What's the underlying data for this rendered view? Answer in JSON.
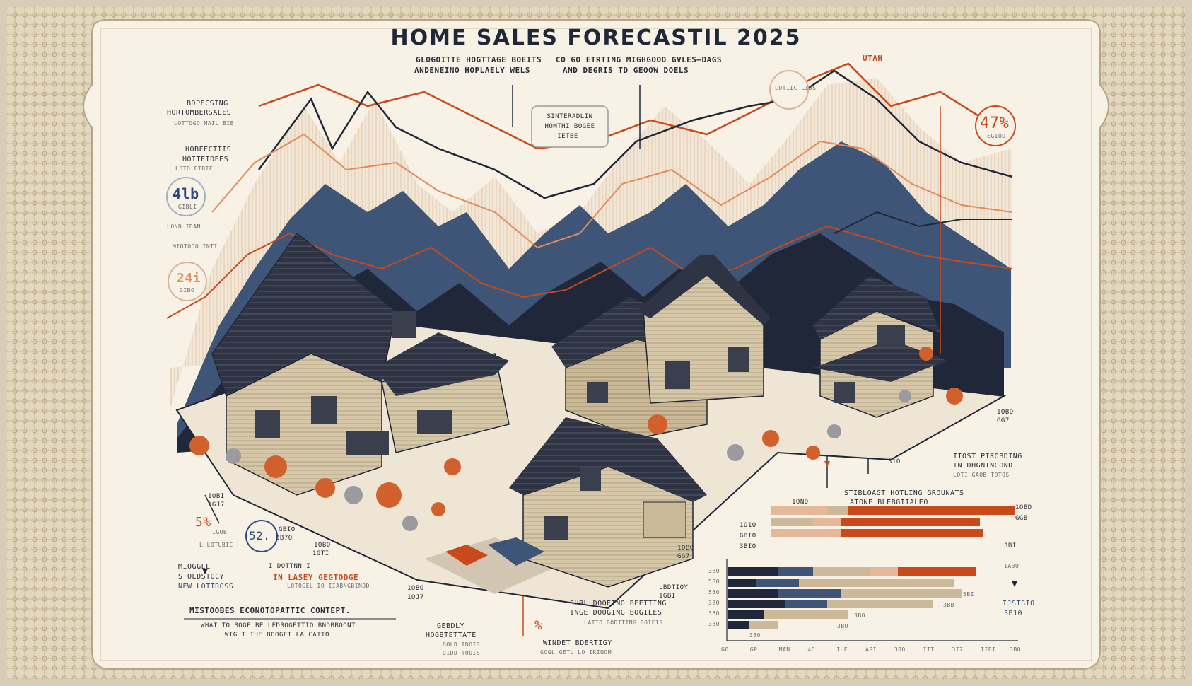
{
  "title": "HOME SALES FORECASTIL 2025",
  "colors": {
    "paper": "#f7f1e6",
    "frame": "#e3d7c0",
    "navy": "#1f2738",
    "slate": "#3f5577",
    "orange": "#c84a1c",
    "tan": "#cbb99a",
    "peach": "#e6b89a"
  },
  "labels": {
    "subtitle_left": [
      "GLOGOITTE HOGTTAGE BOEITS",
      "ANDENEINO HOPLAELY WELS"
    ],
    "subtitle_right": [
      "CO GO ETRTING MIGHGOOD GVLES—DAGS",
      "AND DEGRIS TD GEOOW DOELS"
    ],
    "utah": "UTAH",
    "box_center": [
      "SINTERADLIN",
      "HOMTHI BOGEE",
      "IETBE—"
    ],
    "left_1": [
      "BDPECSING",
      "HORTOMBERSALES",
      "LOTTOGO MAIL BIB"
    ],
    "left_2": [
      "HOBFECTTIS",
      "HOITEIDEES",
      "LOTO ETBIE"
    ],
    "pct_left_top": "4lb",
    "pct_left_top_sub": "GIBLI",
    "left_3": "LOND IDAN",
    "left_4": "MIOTOOO INTI",
    "pct_left_mid": "24i",
    "pct_left_mid_sub": "GIBO",
    "pct_right_top": "47%",
    "pct_right_top_sub": "EGIOD",
    "circle_top": "LOTIIC LIDS",
    "right_mid": [
      "1OBD",
      "GG7"
    ],
    "right_note": [
      "IIOST PIROBDING",
      "IN DHGNINGOND",
      "LOTI GAOB TOTOS"
    ],
    "center_note": [
      "STIBLOAGT HOTLING GROUNATS",
      "ATONE BLEBGIIALEO"
    ],
    "val_center_a": "1OND",
    "val_center_b": "31O",
    "bottom_left_a": [
      "1OBI",
      "1GJ7"
    ],
    "pct_bl_a": "5%",
    "pct_bl_a_sub": [
      "1GOB",
      "L LOTUBIC"
    ],
    "pct_bl_b": "52.",
    "val_bl_b": [
      "GBIO",
      "3B7O"
    ],
    "val_bl_c": [
      "1OBO",
      "1GTI"
    ],
    "bottom_left_note": [
      "MIOGGLL",
      "STOLDSTOCY",
      "NEW LOTTROSS"
    ],
    "orange_note": [
      "IN LASEY GEGTODGE",
      "LOTOGEL IO IIABNGBINDD"
    ],
    "small_note": "I DOTTNN I",
    "bottom_center_a": [
      "1OBO",
      "1OJ7"
    ],
    "bottom_center_b": [
      "GEBDLY",
      "HOGBTETTATE"
    ],
    "bottom_center_b_sub": [
      "GOLD IDOIS",
      "DIDD TOOIS"
    ],
    "pct_bottom": "%",
    "bottom_center_c": [
      "WINDET BDERTIGY",
      "GOGL GETL LO IRINOM"
    ],
    "mid_note": [
      "SUBL DOOEINO BEETTING",
      "INGE DOOGING BOGILES"
    ],
    "mid_note_sub": "LATTO BODITING BOIEIS",
    "val_mid_note": [
      "LBDTIOY",
      "1GBI"
    ],
    "val_bm": [
      "1OBO",
      "GG7"
    ],
    "footer_1": "MISTOOBES ECONOTOPATTIC CONTEPT.",
    "footer_2": [
      "WHAT TO BOGE BE LEDROGETTIO BNDBBOONT",
      "WIG T THE BOOGET LA CATTO"
    ],
    "right_bottom": [
      "IJSTSIO",
      "3B10"
    ]
  },
  "chart_data": {
    "type": "bar",
    "orientation": "horizontal",
    "stacked": true,
    "upper_rows": {
      "right_labels": [
        "1OBD",
        "GGB",
        "3BI"
      ],
      "left_labels": [
        "1O1O",
        "GBIO",
        "3BIO"
      ]
    },
    "lower_rows": {
      "left_labels": [
        "3BO",
        "5BO",
        "5BO",
        "3BO",
        "3BO",
        "3BO"
      ],
      "right_labels": [
        "1A3O",
        "5BI",
        "3BB",
        "3BO",
        "3BO",
        "3BO"
      ]
    },
    "x_tick_labels": [
      "GO",
      "GP",
      "MAN",
      "4O",
      "IHE",
      "API",
      "3BO",
      "IIT",
      "3I7",
      "IIEI",
      "3BO"
    ]
  }
}
